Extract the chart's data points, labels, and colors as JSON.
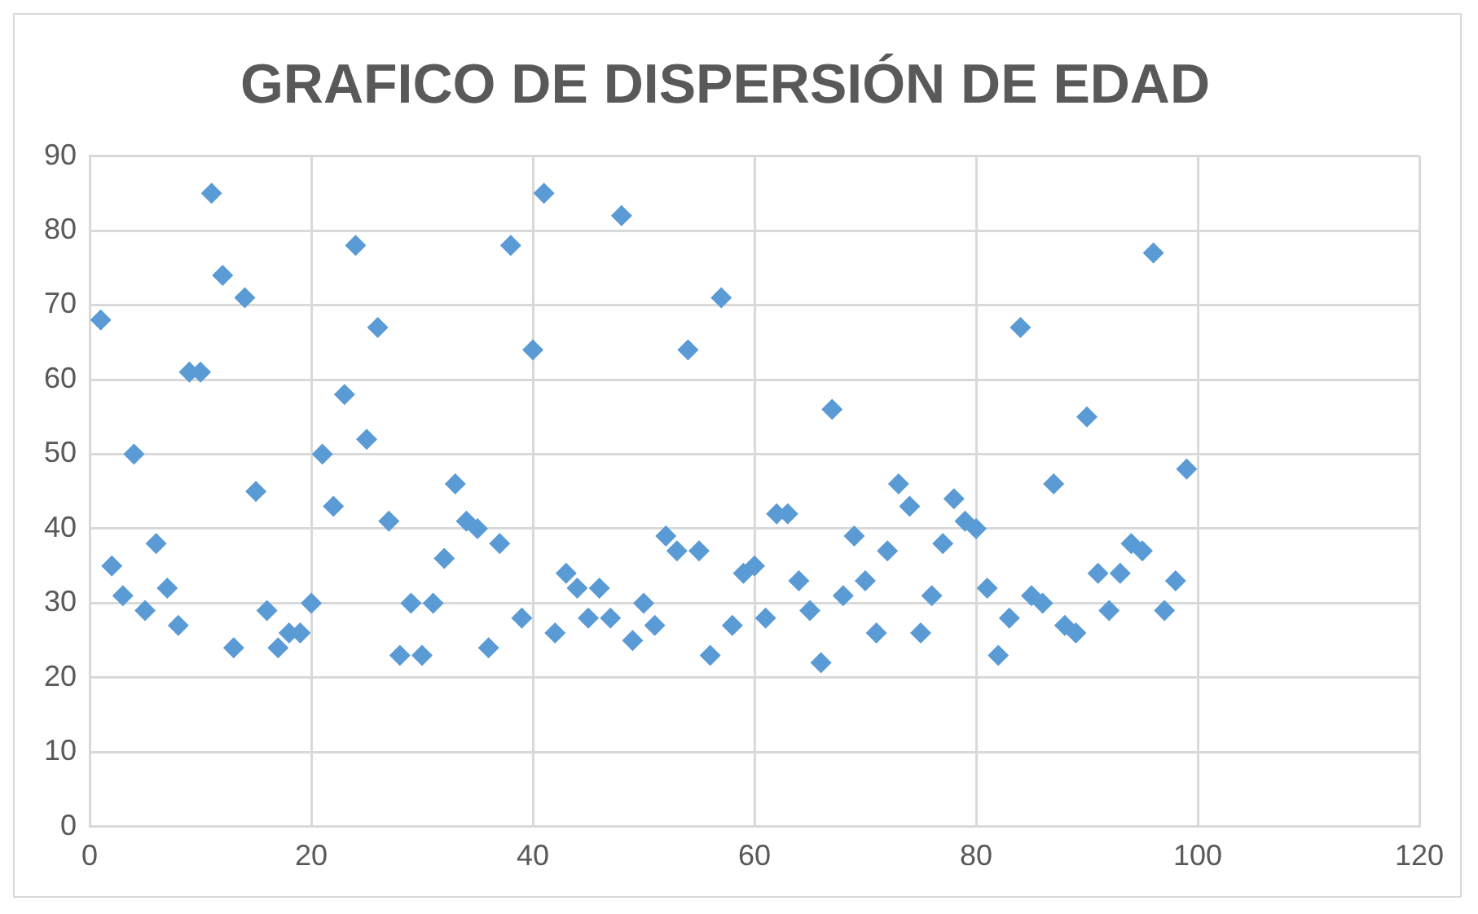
{
  "chart_data": {
    "type": "scatter",
    "title": "GRAFICO DE DISPERSIÓN DE EDAD",
    "marker": "diamond",
    "grid": true,
    "legend": false,
    "xlim": [
      0,
      120
    ],
    "xticks": [
      0,
      20,
      40,
      60,
      80,
      100,
      120
    ],
    "ylim": [
      0,
      90
    ],
    "yticks": [
      0,
      10,
      20,
      30,
      40,
      50,
      60,
      70,
      80,
      90
    ],
    "x": [
      1,
      2,
      3,
      4,
      5,
      6,
      7,
      8,
      9,
      10,
      11,
      12,
      13,
      14,
      15,
      16,
      17,
      18,
      19,
      20,
      21,
      22,
      23,
      24,
      25,
      26,
      27,
      28,
      29,
      30,
      31,
      32,
      33,
      34,
      35,
      36,
      37,
      38,
      39,
      40,
      41,
      42,
      43,
      44,
      45,
      46,
      47,
      48,
      49,
      50,
      51,
      52,
      53,
      54,
      55,
      56,
      57,
      58,
      59,
      60,
      61,
      62,
      63,
      64,
      65,
      66,
      67,
      68,
      69,
      70,
      71,
      72,
      73,
      74,
      75,
      76,
      77,
      78,
      79,
      80,
      81,
      82,
      83,
      84,
      85,
      86,
      87,
      88,
      89,
      90,
      91,
      92,
      93,
      94,
      95,
      96,
      97,
      98,
      99
    ],
    "series": [
      {
        "color": "#5b9bd5",
        "values": [
          68,
          35,
          31,
          50,
          29,
          38,
          32,
          27,
          61,
          61,
          85,
          74,
          24,
          71,
          45,
          29,
          24,
          26,
          26,
          30,
          50,
          43,
          58,
          78,
          52,
          67,
          41,
          23,
          30,
          23,
          30,
          36,
          46,
          41,
          40,
          24,
          38,
          78,
          28,
          64,
          85,
          26,
          34,
          32,
          28,
          32,
          28,
          82,
          25,
          30,
          27,
          39,
          37,
          64,
          37,
          23,
          71,
          27,
          34,
          35,
          28,
          42,
          42,
          33,
          29,
          22,
          56,
          31,
          39,
          33,
          26,
          37,
          46,
          43,
          26,
          31,
          38,
          44,
          41,
          40,
          32,
          23,
          28,
          67,
          31,
          30,
          46,
          27,
          26,
          55,
          34,
          29,
          34,
          38,
          37,
          77,
          29,
          33,
          48
        ]
      }
    ]
  }
}
